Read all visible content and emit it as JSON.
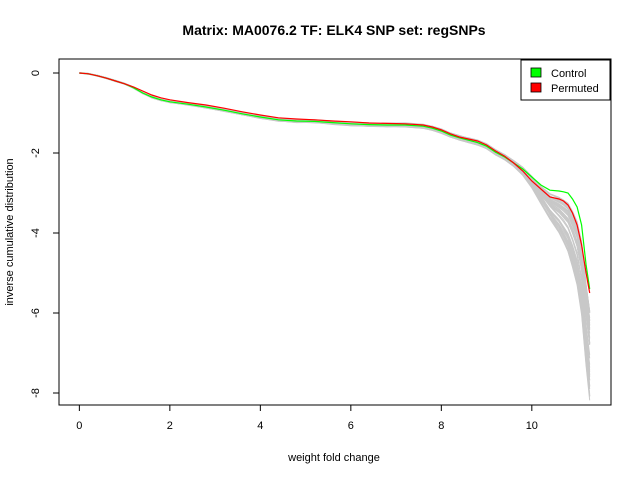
{
  "chart_data": {
    "type": "line",
    "title": "Matrix: MA0076.2 TF: ELK4 SNP set: regSNPs",
    "xlabel": "weight fold change",
    "ylabel": "inverse cumulative distribution",
    "xlim": [
      -0.45,
      11.75
    ],
    "ylim": [
      -8.3,
      0.35
    ],
    "xticks": [
      0,
      2,
      4,
      6,
      8,
      10
    ],
    "yticks": [
      0,
      -2,
      -4,
      -6,
      -8
    ],
    "legend_position": "top-right",
    "grid": false,
    "series": [
      {
        "name": "Control",
        "color": "#00ff00",
        "x": [
          0.0,
          0.2,
          0.4,
          0.6,
          0.8,
          1.0,
          1.2,
          1.4,
          1.6,
          1.8,
          2.0,
          2.4,
          2.8,
          3.2,
          3.6,
          4.0,
          4.4,
          4.8,
          5.2,
          5.6,
          6.0,
          6.4,
          6.8,
          7.2,
          7.6,
          7.8,
          8.0,
          8.2,
          8.4,
          8.6,
          8.8,
          9.0,
          9.2,
          9.4,
          9.6,
          9.8,
          10.0,
          10.2,
          10.4,
          10.6,
          10.7,
          10.8,
          10.9,
          11.0,
          11.1,
          11.2,
          11.28
        ],
        "y": [
          0.0,
          -0.02,
          -0.07,
          -0.13,
          -0.2,
          -0.27,
          -0.37,
          -0.5,
          -0.6,
          -0.67,
          -0.72,
          -0.78,
          -0.85,
          -0.93,
          -1.02,
          -1.1,
          -1.17,
          -1.2,
          -1.21,
          -1.24,
          -1.27,
          -1.29,
          -1.3,
          -1.3,
          -1.33,
          -1.38,
          -1.45,
          -1.55,
          -1.62,
          -1.68,
          -1.74,
          -1.83,
          -1.98,
          -2.1,
          -2.25,
          -2.4,
          -2.6,
          -2.8,
          -2.93,
          -2.95,
          -2.97,
          -3.0,
          -3.15,
          -3.35,
          -3.8,
          -4.8,
          -5.4
        ]
      },
      {
        "name": "Permuted",
        "color": "#ff0000",
        "x": [
          0.0,
          0.2,
          0.4,
          0.6,
          0.8,
          1.0,
          1.2,
          1.4,
          1.6,
          1.8,
          2.0,
          2.4,
          2.8,
          3.2,
          3.6,
          4.0,
          4.4,
          4.8,
          5.2,
          5.6,
          6.0,
          6.4,
          6.8,
          7.2,
          7.6,
          7.8,
          8.0,
          8.2,
          8.4,
          8.6,
          8.8,
          9.0,
          9.2,
          9.4,
          9.6,
          9.8,
          10.0,
          10.2,
          10.4,
          10.6,
          10.7,
          10.8,
          10.9,
          11.0,
          11.1,
          11.2,
          11.28
        ],
        "y": [
          0.0,
          -0.02,
          -0.07,
          -0.13,
          -0.2,
          -0.27,
          -0.35,
          -0.45,
          -0.55,
          -0.62,
          -0.67,
          -0.74,
          -0.8,
          -0.88,
          -0.97,
          -1.05,
          -1.12,
          -1.15,
          -1.17,
          -1.2,
          -1.22,
          -1.25,
          -1.26,
          -1.27,
          -1.3,
          -1.35,
          -1.42,
          -1.52,
          -1.6,
          -1.65,
          -1.7,
          -1.8,
          -1.95,
          -2.08,
          -2.25,
          -2.45,
          -2.7,
          -2.9,
          -3.1,
          -3.15,
          -3.2,
          -3.3,
          -3.5,
          -3.8,
          -4.3,
          -5.0,
          -5.5
        ]
      }
    ]
  }
}
